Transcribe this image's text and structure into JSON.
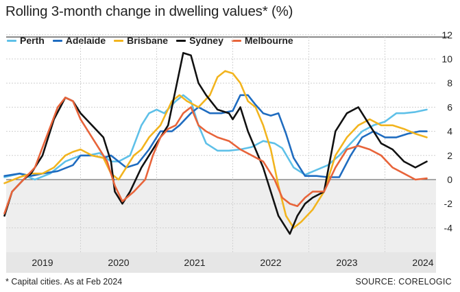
{
  "chart_data": {
    "type": "line",
    "title": "Rolling 3-month change in dwelling values* (%)",
    "xlabel": "",
    "ylabel": "%",
    "ylim": [
      -5,
      12.5
    ],
    "xlim": [
      2018.5,
      2024.35
    ],
    "y_ticks": [
      12,
      10,
      8,
      6,
      4,
      2,
      0,
      -2,
      -4
    ],
    "y_tick_labels": [
      "12",
      "10",
      "8",
      "6",
      "4",
      "2",
      "0",
      "-2",
      "-4"
    ],
    "x_ticks": [
      2019,
      2020,
      2021,
      2022,
      2023,
      2024
    ],
    "x_tick_labels": [
      "2019",
      "2020",
      "2021",
      "2022",
      "2023",
      "2024"
    ],
    "grid": true,
    "legend_position": "top-left",
    "series": [
      {
        "name": "Perth",
        "color": "#5ec0e8",
        "x": [
          2018.5,
          2018.7,
          2018.9,
          2019.1,
          2019.3,
          2019.5,
          2019.6,
          2019.75,
          2019.9,
          2020.0,
          2020.15,
          2020.3,
          2020.4,
          2020.5,
          2020.6,
          2020.75,
          2020.85,
          2020.95,
          2021.05,
          2021.15,
          2021.3,
          2021.45,
          2021.6,
          2021.75,
          2021.9,
          2022.05,
          2022.15,
          2022.3,
          2022.45,
          2022.6,
          2022.75,
          2022.9,
          2023.05,
          2023.2,
          2023.35,
          2023.5,
          2023.65,
          2023.75,
          2023.9,
          2024.05
        ],
        "y": [
          0.2,
          0.5,
          0.0,
          0.5,
          1.5,
          2.0,
          2.0,
          2.2,
          1.5,
          1.5,
          2.0,
          4.5,
          5.5,
          5.8,
          5.5,
          6.5,
          7.0,
          6.5,
          4.5,
          3.0,
          2.4,
          2.4,
          2.5,
          2.7,
          3.2,
          3.0,
          2.6,
          1.0,
          0.4,
          0.8,
          1.2,
          2.0,
          3.0,
          4.0,
          4.5,
          4.8,
          5.5,
          5.5,
          5.6,
          5.8
        ]
      },
      {
        "name": "Adelaide",
        "color": "#1f6cc0",
        "x": [
          2018.5,
          2018.7,
          2018.85,
          2019.0,
          2019.2,
          2019.4,
          2019.5,
          2019.65,
          2019.8,
          2019.9,
          2020.1,
          2020.25,
          2020.4,
          2020.55,
          2020.7,
          2020.8,
          2020.95,
          2021.05,
          2021.2,
          2021.35,
          2021.5,
          2021.6,
          2021.7,
          2021.8,
          2021.9,
          2022.0,
          2022.1,
          2022.2,
          2022.3,
          2022.45,
          2022.6,
          2022.75,
          2022.9,
          2023.05,
          2023.2,
          2023.35,
          2023.5,
          2023.65,
          2023.8,
          2023.95,
          2024.05
        ],
        "y": [
          0.3,
          0.5,
          0.3,
          0.5,
          0.7,
          1.2,
          2.0,
          2.0,
          1.8,
          2.0,
          1.0,
          1.3,
          2.5,
          4.0,
          4.0,
          4.5,
          5.5,
          6.0,
          5.5,
          5.5,
          5.7,
          7.0,
          7.0,
          6.2,
          5.5,
          5.3,
          5.5,
          3.8,
          1.8,
          0.3,
          0.3,
          0.2,
          0.2,
          2.0,
          3.5,
          4.0,
          3.5,
          3.5,
          3.8,
          4.0,
          4.0
        ]
      },
      {
        "name": "Brisbane",
        "color": "#f2b41e",
        "x": [
          2018.5,
          2018.7,
          2018.85,
          2019.0,
          2019.15,
          2019.3,
          2019.4,
          2019.5,
          2019.65,
          2019.8,
          2019.9,
          2020.0,
          2020.1,
          2020.2,
          2020.3,
          2020.4,
          2020.55,
          2020.7,
          2020.8,
          2020.9,
          2021.05,
          2021.2,
          2021.3,
          2021.4,
          2021.5,
          2021.6,
          2021.7,
          2021.8,
          2021.9,
          2022.0,
          2022.1,
          2022.2,
          2022.3,
          2022.4,
          2022.55,
          2022.7,
          2022.85,
          2023.0,
          2023.15,
          2023.3,
          2023.45,
          2023.6,
          2023.75,
          2023.9,
          2024.05
        ],
        "y": [
          -0.3,
          0.2,
          0.5,
          0.5,
          1.0,
          2.0,
          2.3,
          2.5,
          2.0,
          1.8,
          0.5,
          0.0,
          1.0,
          2.0,
          2.5,
          3.5,
          4.5,
          6.5,
          7.0,
          6.5,
          6.0,
          7.0,
          8.5,
          9.0,
          8.8,
          8.0,
          6.5,
          6.0,
          4.5,
          2.5,
          -0.5,
          -3.0,
          -4.0,
          -3.5,
          -2.5,
          -1.0,
          2.0,
          3.5,
          4.5,
          5.0,
          4.5,
          4.5,
          4.2,
          3.8,
          3.5
        ]
      },
      {
        "name": "Sydney",
        "color": "#111111",
        "x": [
          2018.5,
          2018.6,
          2018.75,
          2018.85,
          2019.0,
          2019.15,
          2019.3,
          2019.4,
          2019.5,
          2019.65,
          2019.8,
          2019.9,
          2019.95,
          2020.05,
          2020.15,
          2020.3,
          2020.45,
          2020.55,
          2020.65,
          2020.75,
          2020.85,
          2020.95,
          2021.05,
          2021.15,
          2021.3,
          2021.45,
          2021.5,
          2021.6,
          2021.7,
          2021.8,
          2021.9,
          2022.0,
          2022.1,
          2022.25,
          2022.35,
          2022.45,
          2022.55,
          2022.7,
          2022.85,
          2023.0,
          2023.15,
          2023.3,
          2023.45,
          2023.6,
          2023.75,
          2023.9,
          2024.05
        ],
        "y": [
          -3.0,
          -1.0,
          0.0,
          0.5,
          2.0,
          5.0,
          6.8,
          6.5,
          5.5,
          4.5,
          3.5,
          1.5,
          -1.0,
          -2.0,
          -1.0,
          1.0,
          2.5,
          3.5,
          4.5,
          7.5,
          10.5,
          10.3,
          8.0,
          7.0,
          5.8,
          5.5,
          5.0,
          6.0,
          4.0,
          2.5,
          1.0,
          -1.0,
          -3.0,
          -4.5,
          -3.0,
          -2.0,
          -1.5,
          -1.0,
          4.0,
          5.5,
          6.0,
          4.5,
          3.0,
          2.5,
          1.5,
          1.0,
          1.5
        ]
      },
      {
        "name": "Melbourne",
        "color": "#e8643a",
        "x": [
          2018.5,
          2018.6,
          2018.75,
          2018.9,
          2019.05,
          2019.2,
          2019.3,
          2019.4,
          2019.5,
          2019.65,
          2019.75,
          2019.85,
          2019.95,
          2020.05,
          2020.2,
          2020.35,
          2020.45,
          2020.55,
          2020.65,
          2020.75,
          2020.85,
          2020.95,
          2021.05,
          2021.15,
          2021.3,
          2021.45,
          2021.6,
          2021.75,
          2021.9,
          2022.05,
          2022.15,
          2022.25,
          2022.35,
          2022.45,
          2022.55,
          2022.7,
          2022.85,
          2023.0,
          2023.15,
          2023.3,
          2023.45,
          2023.6,
          2023.75,
          2023.9,
          2024.05
        ],
        "y": [
          -2.8,
          -1.0,
          0.0,
          1.0,
          3.5,
          6.0,
          6.8,
          6.5,
          5.0,
          3.5,
          2.5,
          1.5,
          -0.5,
          -1.8,
          -1.0,
          0.0,
          2.0,
          3.5,
          4.2,
          4.5,
          5.5,
          6.0,
          4.5,
          4.0,
          3.5,
          3.2,
          2.5,
          2.0,
          1.5,
          0.0,
          -1.5,
          -2.0,
          -2.2,
          -1.5,
          -1.0,
          -1.0,
          1.0,
          2.5,
          2.8,
          2.5,
          2.0,
          1.0,
          0.5,
          0.0,
          0.1
        ]
      }
    ]
  },
  "footnote": "* Capital cities. As at Feb 2024",
  "source": "SOURCE: CORELOGIC"
}
